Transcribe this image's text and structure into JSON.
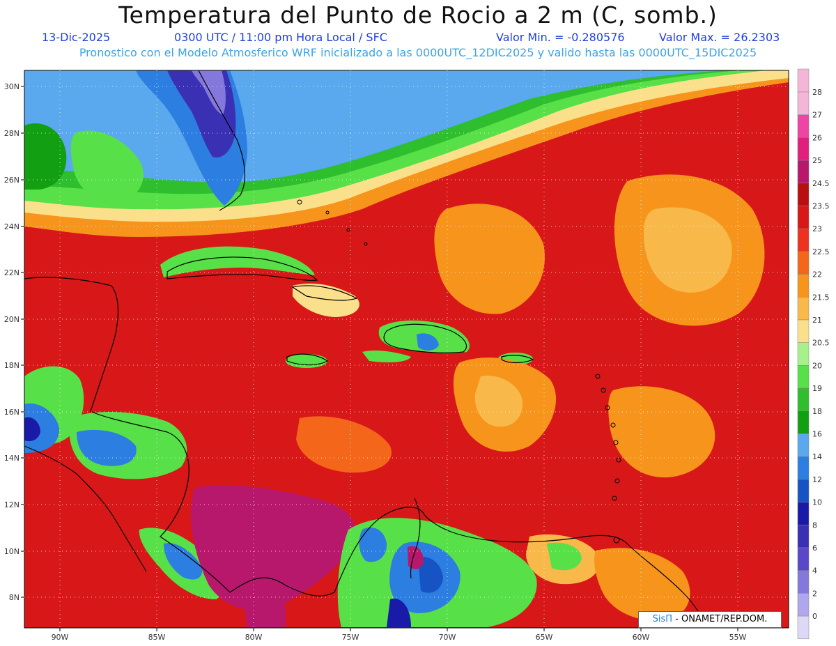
{
  "header": {
    "title": "Temperatura del Punto de Rocio a 2 m (C, somb.)",
    "date": "13-Dic-2025",
    "time": "0300 UTC / 11:00 pm Hora Local / SFC",
    "min_value": "Valor Min. = -0.280576",
    "max_value": "Valor Max. = 26.2303",
    "model_info": "Pronostico con el Modelo Atmosferico WRF inicializado a las 0000UTC_12DIC2025 y valido hasta las  0000UTC_15DIC2025"
  },
  "map": {
    "lat_labels": [
      "30N",
      "28N",
      "26N",
      "24N",
      "22N",
      "20N",
      "18N",
      "16N",
      "14N",
      "12N",
      "10N",
      "8N"
    ],
    "lon_labels": [
      "90W",
      "85W",
      "80W",
      "75W",
      "70W",
      "65W",
      "60W",
      "55W"
    ]
  },
  "colorbar": {
    "levels": [
      "28",
      "27",
      "26",
      "25",
      "24.5",
      "23.5",
      "23",
      "22.5",
      "22",
      "21.5",
      "21",
      "20.5",
      "20",
      "19",
      "18",
      "16",
      "14",
      "12",
      "10",
      "8",
      "6",
      "4",
      "2",
      "0"
    ],
    "colors": [
      "#f4b6d6",
      "#ee44a4",
      "#e0207c",
      "#b8186c",
      "#b81010",
      "#d81818",
      "#ee3220",
      "#f4661a",
      "#f7941c",
      "#f9b84a",
      "#fbe08c",
      "#a8f08c",
      "#58e048",
      "#2ebe2e",
      "#12a012",
      "#5aa8ee",
      "#2c7ee0",
      "#1654c4",
      "#1a1aa8",
      "#3a30b4",
      "#5a48c8",
      "#8478dc",
      "#b0a6ec",
      "#dcd8f6"
    ]
  },
  "credit": {
    "brand": "SisΠ",
    "org": " - ONAMET/REP.DOM."
  }
}
